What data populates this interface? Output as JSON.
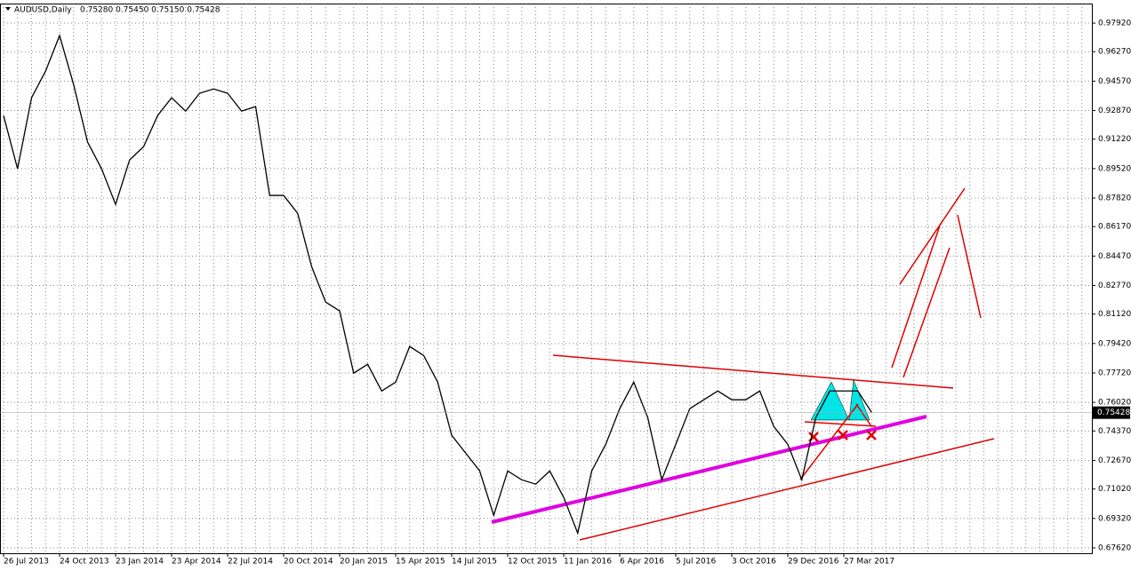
{
  "header": {
    "symbol": "AUDUSD,Daily",
    "quote": "0.75280 0.75450 0.75150 0.75428"
  },
  "chart_data": {
    "type": "line",
    "categories": [
      "26 Jul 2013",
      null,
      null,
      null,
      "24 Oct 2013",
      null,
      null,
      null,
      "23 Jan 2014",
      null,
      null,
      null,
      "23 Apr 2014",
      null,
      null,
      null,
      "22 Jul 2014",
      null,
      null,
      null,
      "20 Oct 2014",
      null,
      null,
      null,
      "20 Jan 2015",
      null,
      null,
      null,
      "15 Apr 2015",
      null,
      null,
      null,
      "14 Jul 2015",
      null,
      null,
      null,
      "12 Oct 2015",
      null,
      null,
      null,
      "11 Jan 2016",
      null,
      null,
      null,
      "6 Apr 2016",
      null,
      null,
      null,
      "5 Jul 2016",
      null,
      null,
      null,
      "3 Oct 2016",
      null,
      null,
      null,
      "29 Dec 2016",
      null,
      null,
      null,
      "27 Mar 2017",
      null,
      null,
      null,
      null,
      null,
      null,
      null,
      null,
      null,
      null,
      null,
      null,
      null,
      null,
      null,
      null,
      null
    ],
    "series": [
      {
        "color": "#000000",
        "values": [
          0.9258,
          0.8951,
          0.9361,
          0.9515,
          0.972,
          0.9438,
          0.9105,
          0.8951,
          0.8745,
          0.9002,
          0.9079,
          0.9258,
          0.9361,
          0.9284,
          0.9387,
          0.9412,
          0.9387,
          0.9284,
          0.931,
          0.8797,
          0.8797,
          0.8694,
          0.8386,
          0.8181,
          0.813,
          0.7771,
          0.7822,
          0.7668,
          0.7719,
          0.7925,
          0.7873,
          0.7719,
          0.7412,
          0.7309,
          0.7206,
          0.695,
          0.7206,
          0.7155,
          0.713,
          0.7206,
          0.7053,
          0.6847,
          0.7206,
          0.736,
          0.7566,
          0.7719,
          0.7514,
          0.7155,
          0.736,
          0.7566,
          0.7617,
          0.7668,
          0.7617,
          0.7617,
          0.7668,
          0.7463,
          0.736,
          0.7155,
          0.7514,
          0.7668,
          0.7668,
          0.7668,
          0.75428,
          null,
          null,
          null,
          null,
          null,
          null,
          null,
          null,
          null,
          null,
          null,
          null,
          null,
          null,
          null
        ]
      }
    ],
    "last_price": 0.75428,
    "ylim": [
      0.6731,
      0.9905
    ],
    "yticks": [
      {
        "value": 0.9792,
        "label": "0.97920"
      },
      {
        "value": 0.9627,
        "label": "0.96270"
      },
      {
        "value": 0.9457,
        "label": "0.94570"
      },
      {
        "value": 0.9287,
        "label": "0.92870"
      },
      {
        "value": 0.9122,
        "label": "0.91220"
      },
      {
        "value": 0.8952,
        "label": "0.89520"
      },
      {
        "value": 0.8782,
        "label": "0.87820"
      },
      {
        "value": 0.8617,
        "label": "0.86170"
      },
      {
        "value": 0.8447,
        "label": "0.84470"
      },
      {
        "value": 0.8277,
        "label": "0.82770"
      },
      {
        "value": 0.8112,
        "label": "0.81120"
      },
      {
        "value": 0.7942,
        "label": "0.79420"
      },
      {
        "value": 0.7772,
        "label": "0.77720"
      },
      {
        "value": 0.7602,
        "label": "0.76020"
      },
      {
        "value": 0.7437,
        "label": "0.74370"
      },
      {
        "value": 0.7267,
        "label": "0.72670"
      },
      {
        "value": 0.7102,
        "label": "0.71020"
      },
      {
        "value": 0.6932,
        "label": "0.69320"
      },
      {
        "value": 0.6762,
        "label": "0.67620"
      }
    ],
    "grid": true
  }
}
